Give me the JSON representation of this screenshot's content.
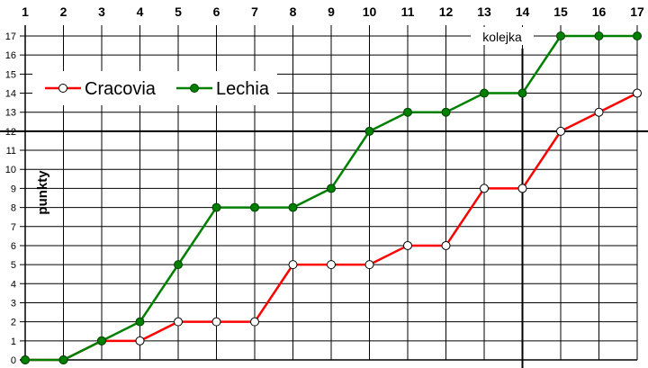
{
  "chart_data": {
    "type": "line",
    "x": [
      1,
      2,
      3,
      4,
      5,
      6,
      7,
      8,
      9,
      10,
      11,
      12,
      13,
      14,
      15,
      16,
      17
    ],
    "xticks": [
      "1",
      "2",
      "3",
      "4",
      "5",
      "6",
      "7",
      "8",
      "9",
      "10",
      "11",
      "12",
      "13",
      "14",
      "15",
      "16",
      "17"
    ],
    "xlim": [
      1,
      17
    ],
    "ylim": [
      0,
      17
    ],
    "yticks": [
      "0",
      "1",
      "2",
      "3",
      "4",
      "5",
      "6",
      "7",
      "8",
      "9",
      "10",
      "11",
      "12",
      "13",
      "14",
      "15",
      "16",
      "17"
    ],
    "ylabel": "punkty",
    "xlabel": "",
    "title": "",
    "grid": true,
    "legend_position": "top-left",
    "series": [
      {
        "name": "Cracovia",
        "color": "#ff0000",
        "marker": "hollow-circle",
        "values": [
          0,
          0,
          1,
          1,
          2,
          2,
          2,
          5,
          5,
          5,
          6,
          6,
          9,
          9,
          12,
          13,
          14
        ]
      },
      {
        "name": "Lechia",
        "color": "#008000",
        "marker": "filled-circle",
        "values": [
          0,
          0,
          1,
          2,
          5,
          8,
          8,
          8,
          9,
          12,
          13,
          13,
          14,
          14,
          17,
          17,
          17
        ]
      }
    ],
    "annotations": [
      {
        "text": "kolejka",
        "x": 14,
        "type": "vertical-line"
      },
      {
        "text": "",
        "y": 12,
        "type": "horizontal-line"
      }
    ]
  }
}
